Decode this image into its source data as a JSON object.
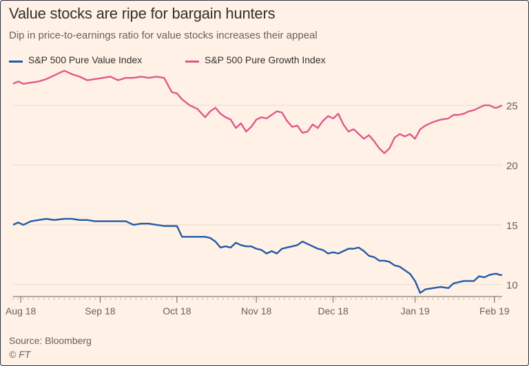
{
  "title": "Value stocks are ripe for bargain hunters",
  "subtitle": "Dip in price-to-earnings ratio for value stocks increases their appeal",
  "source": "Source: Bloomberg",
  "credit": "© FT",
  "colors": {
    "background": "#fff1e5",
    "value_series": "#1f5aa6",
    "growth_series": "#e0578a",
    "grid": "#e6d9ce",
    "axis": "#66605c"
  },
  "chart_data": {
    "type": "line",
    "xlabel": "",
    "ylabel": "",
    "xlim": [
      "2018-08-15",
      "2019-02-22"
    ],
    "ylim": [
      9,
      28
    ],
    "yticks": [
      10,
      15,
      20,
      25
    ],
    "grid": true,
    "y_axis_side": "right",
    "legend_position": "top-left",
    "xtick_labels": [
      {
        "label": "Aug 18",
        "date": "2018-08-18"
      },
      {
        "label": "Sep 18",
        "date": "2018-09-18"
      },
      {
        "label": "Oct 18",
        "date": "2018-10-18"
      },
      {
        "label": "Nov 18",
        "date": "2018-11-18"
      },
      {
        "label": "Dec 18",
        "date": "2018-12-18"
      },
      {
        "label": "Jan 19",
        "date": "2019-01-19"
      },
      {
        "label": "Feb 19",
        "date": "2019-02-19"
      }
    ],
    "series": [
      {
        "name": "S&P 500 Pure Value Index",
        "color": "#1f5aa6",
        "points": [
          [
            "2018-08-15",
            15.0
          ],
          [
            "2018-08-17",
            15.2
          ],
          [
            "2018-08-19",
            15.0
          ],
          [
            "2018-08-22",
            15.3
          ],
          [
            "2018-08-25",
            15.4
          ],
          [
            "2018-08-28",
            15.5
          ],
          [
            "2018-08-31",
            15.4
          ],
          [
            "2018-09-04",
            15.5
          ],
          [
            "2018-09-07",
            15.5
          ],
          [
            "2018-09-10",
            15.4
          ],
          [
            "2018-09-13",
            15.4
          ],
          [
            "2018-09-16",
            15.3
          ],
          [
            "2018-09-19",
            15.3
          ],
          [
            "2018-09-22",
            15.3
          ],
          [
            "2018-09-25",
            15.3
          ],
          [
            "2018-09-28",
            15.3
          ],
          [
            "2018-10-01",
            15.0
          ],
          [
            "2018-10-04",
            15.1
          ],
          [
            "2018-10-07",
            15.1
          ],
          [
            "2018-10-10",
            15.0
          ],
          [
            "2018-10-13",
            14.9
          ],
          [
            "2018-10-16",
            14.9
          ],
          [
            "2018-10-18",
            14.9
          ],
          [
            "2018-10-20",
            14.0
          ],
          [
            "2018-10-23",
            14.0
          ],
          [
            "2018-10-26",
            14.0
          ],
          [
            "2018-10-29",
            14.0
          ],
          [
            "2018-10-31",
            13.9
          ],
          [
            "2018-11-02",
            13.6
          ],
          [
            "2018-11-04",
            13.1
          ],
          [
            "2018-11-06",
            13.2
          ],
          [
            "2018-11-08",
            13.1
          ],
          [
            "2018-11-10",
            13.5
          ],
          [
            "2018-11-12",
            13.3
          ],
          [
            "2018-11-14",
            13.2
          ],
          [
            "2018-11-16",
            13.2
          ],
          [
            "2018-11-18",
            13.0
          ],
          [
            "2018-11-20",
            12.9
          ],
          [
            "2018-11-22",
            12.6
          ],
          [
            "2018-11-24",
            12.8
          ],
          [
            "2018-11-26",
            12.6
          ],
          [
            "2018-11-28",
            13.0
          ],
          [
            "2018-11-30",
            13.1
          ],
          [
            "2018-12-02",
            13.2
          ],
          [
            "2018-12-04",
            13.3
          ],
          [
            "2018-12-06",
            13.6
          ],
          [
            "2018-12-08",
            13.4
          ],
          [
            "2018-12-10",
            13.2
          ],
          [
            "2018-12-12",
            13.0
          ],
          [
            "2018-12-14",
            12.9
          ],
          [
            "2018-12-16",
            12.6
          ],
          [
            "2018-12-18",
            12.7
          ],
          [
            "2018-12-20",
            12.6
          ],
          [
            "2018-12-22",
            12.8
          ],
          [
            "2018-12-24",
            13.0
          ],
          [
            "2018-12-26",
            13.0
          ],
          [
            "2018-12-28",
            13.1
          ],
          [
            "2018-12-30",
            12.8
          ],
          [
            "2019-01-01",
            12.4
          ],
          [
            "2019-01-03",
            12.3
          ],
          [
            "2019-01-05",
            12.0
          ],
          [
            "2019-01-07",
            12.0
          ],
          [
            "2019-01-09",
            11.9
          ],
          [
            "2019-01-11",
            11.6
          ],
          [
            "2019-01-13",
            11.5
          ],
          [
            "2019-01-15",
            11.2
          ],
          [
            "2019-01-17",
            10.9
          ],
          [
            "2019-01-19",
            10.3
          ],
          [
            "2019-01-21",
            9.3
          ],
          [
            "2019-01-23",
            9.6
          ],
          [
            "2019-01-26",
            9.7
          ],
          [
            "2019-01-29",
            9.8
          ],
          [
            "2019-02-01",
            9.7
          ],
          [
            "2019-02-03",
            10.1
          ],
          [
            "2019-02-05",
            10.2
          ],
          [
            "2019-02-07",
            10.3
          ],
          [
            "2019-02-09",
            10.3
          ],
          [
            "2019-02-11",
            10.3
          ],
          [
            "2019-02-13",
            10.7
          ],
          [
            "2019-02-15",
            10.6
          ],
          [
            "2019-02-17",
            10.8
          ],
          [
            "2019-02-19",
            10.9
          ],
          [
            "2019-02-20",
            10.9
          ],
          [
            "2019-02-21",
            10.8
          ],
          [
            "2019-02-22",
            10.8
          ]
        ]
      },
      {
        "name": "S&P 500 Pure Growth Index",
        "color": "#e0578a",
        "points": [
          [
            "2018-08-15",
            26.8
          ],
          [
            "2018-08-17",
            27.0
          ],
          [
            "2018-08-19",
            26.8
          ],
          [
            "2018-08-22",
            26.9
          ],
          [
            "2018-08-25",
            27.0
          ],
          [
            "2018-08-28",
            27.2
          ],
          [
            "2018-08-31",
            27.5
          ],
          [
            "2018-09-04",
            27.9
          ],
          [
            "2018-09-07",
            27.6
          ],
          [
            "2018-09-10",
            27.4
          ],
          [
            "2018-09-13",
            27.1
          ],
          [
            "2018-09-16",
            27.2
          ],
          [
            "2018-09-19",
            27.3
          ],
          [
            "2018-09-22",
            27.4
          ],
          [
            "2018-09-25",
            27.1
          ],
          [
            "2018-09-28",
            27.3
          ],
          [
            "2018-10-01",
            27.3
          ],
          [
            "2018-10-04",
            27.4
          ],
          [
            "2018-10-07",
            27.3
          ],
          [
            "2018-10-10",
            27.4
          ],
          [
            "2018-10-13",
            27.3
          ],
          [
            "2018-10-16",
            26.1
          ],
          [
            "2018-10-18",
            26.0
          ],
          [
            "2018-10-20",
            25.5
          ],
          [
            "2018-10-23",
            25.0
          ],
          [
            "2018-10-26",
            24.7
          ],
          [
            "2018-10-29",
            24.0
          ],
          [
            "2018-10-31",
            24.5
          ],
          [
            "2018-11-02",
            24.8
          ],
          [
            "2018-11-04",
            24.3
          ],
          [
            "2018-11-06",
            24.0
          ],
          [
            "2018-11-08",
            23.8
          ],
          [
            "2018-11-10",
            23.1
          ],
          [
            "2018-11-12",
            23.5
          ],
          [
            "2018-11-14",
            22.8
          ],
          [
            "2018-11-16",
            23.2
          ],
          [
            "2018-11-18",
            23.8
          ],
          [
            "2018-11-20",
            24.0
          ],
          [
            "2018-11-22",
            23.9
          ],
          [
            "2018-11-24",
            24.2
          ],
          [
            "2018-11-26",
            24.5
          ],
          [
            "2018-11-28",
            24.4
          ],
          [
            "2018-11-30",
            23.7
          ],
          [
            "2018-12-02",
            23.2
          ],
          [
            "2018-12-04",
            23.3
          ],
          [
            "2018-12-06",
            22.7
          ],
          [
            "2018-12-08",
            22.8
          ],
          [
            "2018-12-10",
            23.4
          ],
          [
            "2018-12-12",
            23.1
          ],
          [
            "2018-12-14",
            23.7
          ],
          [
            "2018-12-16",
            24.1
          ],
          [
            "2018-12-18",
            23.9
          ],
          [
            "2018-12-20",
            24.3
          ],
          [
            "2018-12-22",
            23.4
          ],
          [
            "2018-12-24",
            22.8
          ],
          [
            "2018-12-26",
            23.0
          ],
          [
            "2018-12-28",
            22.6
          ],
          [
            "2018-12-30",
            22.2
          ],
          [
            "2019-01-01",
            22.5
          ],
          [
            "2019-01-03",
            22.0
          ],
          [
            "2019-01-05",
            21.4
          ],
          [
            "2019-01-07",
            21.0
          ],
          [
            "2019-01-09",
            21.4
          ],
          [
            "2019-01-11",
            22.3
          ],
          [
            "2019-01-13",
            22.6
          ],
          [
            "2019-01-15",
            22.4
          ],
          [
            "2019-01-17",
            22.6
          ],
          [
            "2019-01-19",
            22.2
          ],
          [
            "2019-01-21",
            23.0
          ],
          [
            "2019-01-23",
            23.3
          ],
          [
            "2019-01-26",
            23.6
          ],
          [
            "2019-01-29",
            23.8
          ],
          [
            "2019-02-01",
            23.9
          ],
          [
            "2019-02-03",
            24.2
          ],
          [
            "2019-02-05",
            24.2
          ],
          [
            "2019-02-07",
            24.3
          ],
          [
            "2019-02-09",
            24.5
          ],
          [
            "2019-02-11",
            24.6
          ],
          [
            "2019-02-13",
            24.8
          ],
          [
            "2019-02-15",
            25.0
          ],
          [
            "2019-02-17",
            25.0
          ],
          [
            "2019-02-19",
            24.8
          ],
          [
            "2019-02-20",
            24.8
          ],
          [
            "2019-02-21",
            24.9
          ],
          [
            "2019-02-22",
            25.0
          ]
        ]
      }
    ]
  }
}
